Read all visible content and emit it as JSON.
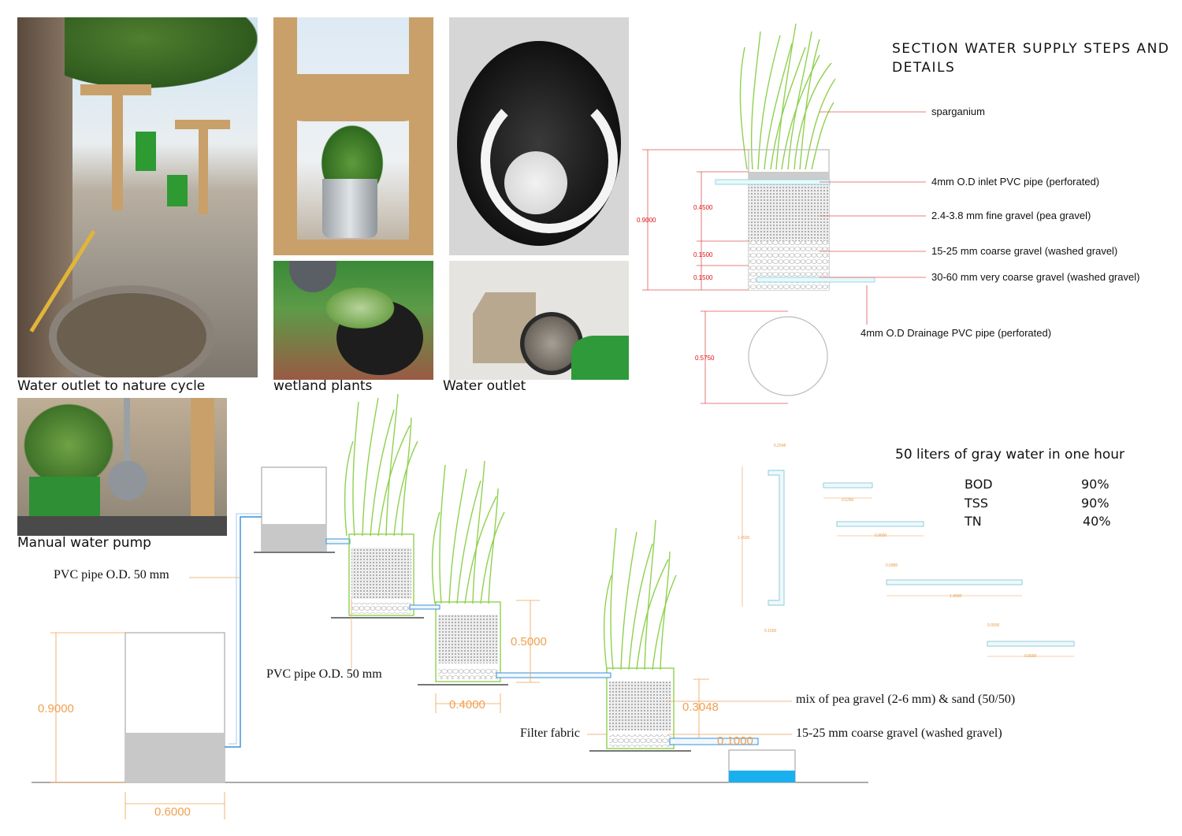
{
  "captions": {
    "photo1": "Water outlet to nature cycle",
    "photo2": "wetland plants",
    "photo3": "Water outlet",
    "photo5": "Manual water pump"
  },
  "section": {
    "title": "SECTION WATER SUPPLY STEPS AND DETAILS",
    "labels": {
      "plant": "sparganium",
      "inlet": "4mm O.D inlet PVC pipe (perforated)",
      "fine": "2.4-3.8 mm fine gravel (pea gravel)",
      "coarse": "15-25 mm coarse gravel (washed gravel)",
      "very_coarse": "30-60 mm very coarse gravel (washed gravel)",
      "drainage": "4mm O.D Drainage PVC pipe (perforated)"
    },
    "dims": {
      "total": "0.9000",
      "fine": "0.4500",
      "coarse": "0.1500",
      "very_coarse": "0.1500",
      "circle": "0.5750"
    }
  },
  "performance": {
    "heading": "50 liters of gray water in one hour",
    "rows": [
      {
        "name": "BOD",
        "value": "90%"
      },
      {
        "name": "TSS",
        "value": "90%"
      },
      {
        "name": "TN",
        "value": "40%"
      }
    ]
  },
  "pipes_detail": {
    "dims": [
      "0.2548",
      "1.4500",
      "0.1500",
      "0.5250",
      "0.9000",
      "0.0880",
      "1.4000",
      "0.0500",
      "0.9000"
    ]
  },
  "system": {
    "pipe_label_1": "PVC pipe O.D. 50 mm",
    "pipe_label_2": "PVC pipe O.D. 50 mm",
    "filter_fabric": "Filter fabric",
    "mix_label": "mix of pea gravel (2-6 mm) & sand (50/50)",
    "coarse_label": "15-25 mm coarse gravel (washed gravel)",
    "dims": {
      "tank_height": "0.9000",
      "tank_width": "0.6000",
      "bed_height": "0.5000",
      "bed_width": "0.4000",
      "layer_top": "0.3048",
      "layer_bottom": "0.1000"
    }
  },
  "colors": {
    "plant": "#8fd14f",
    "pipe": "#3a8fd6",
    "dim_red": "#dd1111",
    "dim_orange": "#f0a050",
    "water": "#1ab0f0",
    "gray_water": "#c8c8c8"
  }
}
